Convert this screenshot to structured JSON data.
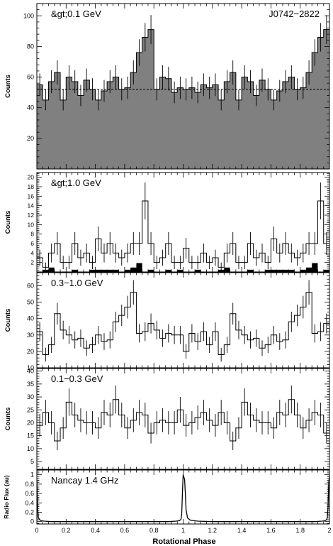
{
  "chart_data": [
    {
      "type": "step-histogram",
      "panel_label": "&gt;0.1 GeV",
      "source_label": "J0742−2822",
      "ylabel": "Counts",
      "ylim": [
        0,
        108
      ],
      "yticks": [
        20,
        40,
        60,
        80,
        100
      ],
      "filled": true,
      "fill_color": "#808080",
      "background_level": 52,
      "bin_width": 0.04,
      "x_start": 0.0,
      "values": [
        55,
        45,
        57,
        63,
        45,
        60,
        57,
        48,
        58,
        52,
        45,
        51,
        57,
        60,
        52,
        53,
        63,
        76,
        86,
        91,
        52,
        60,
        59,
        50,
        53,
        52,
        53,
        50,
        55,
        53,
        55,
        45,
        57,
        63,
        45,
        60,
        57,
        48,
        58,
        52,
        45,
        51,
        57,
        60,
        52,
        53,
        63,
        76,
        86,
        91,
        52,
        60,
        59,
        50,
        53,
        52,
        53,
        50,
        55,
        53
      ],
      "errors": [
        7.4,
        6.7,
        7.5,
        7.9,
        6.7,
        7.7,
        7.5,
        6.9,
        7.6,
        7.2,
        6.7,
        7.1,
        7.5,
        7.7,
        7.2,
        7.3,
        7.9,
        8.7,
        9.3,
        9.5,
        7.2,
        7.7,
        7.7,
        7.1,
        7.3,
        7.2,
        7.3,
        7.1,
        7.4,
        7.3,
        7.4,
        6.7,
        7.5,
        7.9,
        6.7,
        7.7,
        7.5,
        6.9,
        7.6,
        7.2,
        6.7,
        7.1,
        7.5,
        7.7,
        7.2,
        7.3,
        7.9,
        8.7,
        9.3,
        9.5,
        7.2,
        7.7,
        7.7,
        7.1,
        7.3,
        7.2,
        7.3,
        7.1,
        7.4,
        7.3
      ]
    },
    {
      "type": "step-histogram",
      "panel_label": "&gt;1.0 GeV",
      "ylabel": "Counts",
      "ylim": [
        0,
        21
      ],
      "yticks": [
        2,
        4,
        6,
        8,
        10,
        12,
        14,
        16,
        18,
        20
      ],
      "filled": false,
      "bin_width": 0.04,
      "x_start": 0.0,
      "values": [
        3,
        1,
        4,
        6,
        2,
        2,
        6,
        3,
        4,
        2,
        7,
        4,
        6,
        4,
        3,
        4,
        6,
        6,
        15,
        6,
        2,
        3,
        6,
        2,
        2,
        5,
        2,
        2,
        4,
        2,
        3,
        1,
        4,
        6,
        2,
        2,
        6,
        3,
        4,
        2,
        7,
        4,
        6,
        4,
        3,
        4,
        6,
        6,
        15,
        6,
        2,
        3,
        6,
        2,
        2,
        5,
        2,
        2,
        4,
        2
      ],
      "errors": [
        1.7,
        1.0,
        2.0,
        2.4,
        1.4,
        1.4,
        2.4,
        1.7,
        2.0,
        1.4,
        2.6,
        2.0,
        2.4,
        2.0,
        1.7,
        2.0,
        2.4,
        2.4,
        3.9,
        2.4,
        1.4,
        1.7,
        2.4,
        1.4,
        1.4,
        2.2,
        1.4,
        1.4,
        2.0,
        1.4,
        1.7,
        1.0,
        2.0,
        2.4,
        1.4,
        1.4,
        2.4,
        1.7,
        2.0,
        1.4,
        2.6,
        2.0,
        2.4,
        2.0,
        1.7,
        2.0,
        2.4,
        2.4,
        3.9,
        2.4,
        1.4,
        1.7,
        2.4,
        1.4,
        1.4,
        2.2,
        1.4,
        1.4,
        2.0,
        1.4
      ],
      "inset": {
        "type": "bar",
        "color": "#000000",
        "ylim": [
          0,
          9
        ],
        "values": [
          0,
          1,
          2,
          0,
          0,
          0,
          1,
          0,
          0,
          1,
          1,
          1,
          1,
          1,
          0,
          1,
          2,
          4,
          0,
          1,
          0,
          0,
          1,
          0,
          1,
          0,
          0,
          1,
          0,
          0,
          0,
          1,
          2,
          0,
          0,
          0,
          1,
          0,
          0,
          1,
          1,
          1,
          1,
          1,
          0,
          1,
          2,
          4,
          0,
          1,
          0,
          0,
          1,
          0,
          1,
          0,
          0,
          1,
          0,
          0
        ]
      }
    },
    {
      "type": "step-histogram",
      "panel_label": "0.3−1.0 GeV",
      "ylabel": "Counts",
      "ylim": [
        10,
        68
      ],
      "yticks": [
        10,
        20,
        30,
        40,
        50,
        60
      ],
      "filled": false,
      "bin_width": 0.04,
      "x_start": 0.0,
      "values": [
        32,
        18,
        24,
        43,
        33,
        30,
        27,
        28,
        22,
        24,
        30,
        26,
        27,
        38,
        42,
        47,
        56,
        31,
        32,
        37,
        33,
        28,
        31,
        30,
        30,
        20,
        31,
        26,
        32,
        24,
        32,
        18,
        24,
        43,
        33,
        30,
        27,
        28,
        22,
        24,
        30,
        26,
        27,
        38,
        42,
        47,
        56,
        31,
        32,
        37,
        33,
        28,
        31,
        30,
        30,
        20,
        31,
        26,
        32,
        24
      ],
      "errors": [
        5.7,
        4.2,
        4.9,
        6.6,
        5.7,
        5.5,
        5.2,
        5.3,
        4.7,
        4.9,
        5.5,
        5.1,
        5.2,
        6.2,
        6.5,
        6.9,
        7.5,
        5.6,
        5.7,
        6.1,
        5.7,
        5.3,
        5.6,
        5.5,
        5.5,
        4.5,
        5.6,
        5.1,
        5.7,
        4.9,
        5.7,
        4.2,
        4.9,
        6.6,
        5.7,
        5.5,
        5.2,
        5.3,
        4.7,
        4.9,
        5.5,
        5.1,
        5.2,
        6.2,
        6.5,
        6.9,
        7.5,
        5.6,
        5.7,
        6.1,
        5.7,
        5.3,
        5.6,
        5.5,
        5.5,
        4.5,
        5.6,
        5.1,
        5.7,
        4.9
      ]
    },
    {
      "type": "step-histogram",
      "panel_label": "0.1−0.3 GeV",
      "ylabel": "Counts",
      "ylim": [
        2,
        41
      ],
      "yticks": [
        5,
        10,
        15,
        20,
        25,
        30,
        35,
        40
      ],
      "filled": false,
      "bin_width": 0.04,
      "x_start": 0.0,
      "values": [
        19,
        24,
        20,
        13,
        18,
        28,
        23,
        21,
        20,
        20,
        18,
        24,
        23,
        29,
        23,
        18,
        21,
        24,
        23,
        16,
        20,
        21,
        20,
        20,
        25,
        19,
        20,
        22,
        24,
        21,
        19,
        24,
        20,
        13,
        18,
        28,
        23,
        21,
        20,
        20,
        18,
        24,
        23,
        29,
        23,
        18,
        21,
        24,
        23,
        16,
        20,
        21,
        20,
        20,
        25,
        19,
        20,
        22,
        24,
        21
      ],
      "errors": [
        4.4,
        4.9,
        4.5,
        3.6,
        4.2,
        5.3,
        4.8,
        4.6,
        4.5,
        4.5,
        4.2,
        4.9,
        4.8,
        5.4,
        4.8,
        4.2,
        4.6,
        4.9,
        4.8,
        4.0,
        4.5,
        4.6,
        4.5,
        4.5,
        5.0,
        4.4,
        4.5,
        4.7,
        4.9,
        4.6,
        4.4,
        4.9,
        4.5,
        3.6,
        4.2,
        5.3,
        4.8,
        4.6,
        4.5,
        4.5,
        4.2,
        4.9,
        4.8,
        5.4,
        4.8,
        4.2,
        4.6,
        4.9,
        4.8,
        4.0,
        4.5,
        4.6,
        4.5,
        4.5,
        5.0,
        4.4,
        4.5,
        4.7,
        4.9,
        4.6
      ]
    },
    {
      "type": "line",
      "panel_label": "Nancay 1.4 GHz",
      "ylabel": "Radio Flux (au)",
      "ylim": [
        -0.05,
        1.1
      ],
      "yticks": [
        0,
        0.2,
        0.4,
        0.6,
        0.8,
        1
      ],
      "x": [
        0.0,
        0.005,
        0.01,
        0.02,
        0.03,
        0.05,
        0.1,
        0.2,
        0.3,
        0.4,
        0.5,
        0.6,
        0.7,
        0.8,
        0.9,
        0.95,
        0.975,
        0.985,
        0.99,
        0.995,
        1.0,
        1.005,
        1.01,
        1.015,
        1.02,
        1.03,
        1.05,
        1.1,
        1.2,
        1.3,
        1.4,
        1.5,
        1.6,
        1.7,
        1.8,
        1.9,
        1.95,
        1.97,
        1.98,
        1.985,
        1.99,
        1.995,
        2.0
      ],
      "values": [
        0.9,
        0.3,
        0.08,
        0.04,
        0.02,
        0.01,
        0.0,
        0.0,
        0.0,
        0.0,
        0.0,
        0.0,
        0.0,
        0.0,
        0.0,
        0.01,
        0.02,
        0.05,
        0.15,
        0.6,
        1.0,
        0.95,
        0.9,
        0.6,
        0.25,
        0.08,
        0.03,
        0.01,
        0.0,
        0.0,
        0.0,
        0.0,
        0.0,
        0.0,
        0.0,
        0.0,
        0.01,
        0.02,
        0.04,
        0.08,
        0.3,
        0.8,
        1.0
      ]
    }
  ],
  "x_axis": {
    "xlabel": "Rotational Phase",
    "xlim": [
      0,
      2
    ],
    "ticks": [
      "0",
      "0.2",
      "0.4",
      "0.6",
      "0.8",
      "1",
      "1.2",
      "1.4",
      "1.6",
      "1.8",
      "2"
    ]
  }
}
